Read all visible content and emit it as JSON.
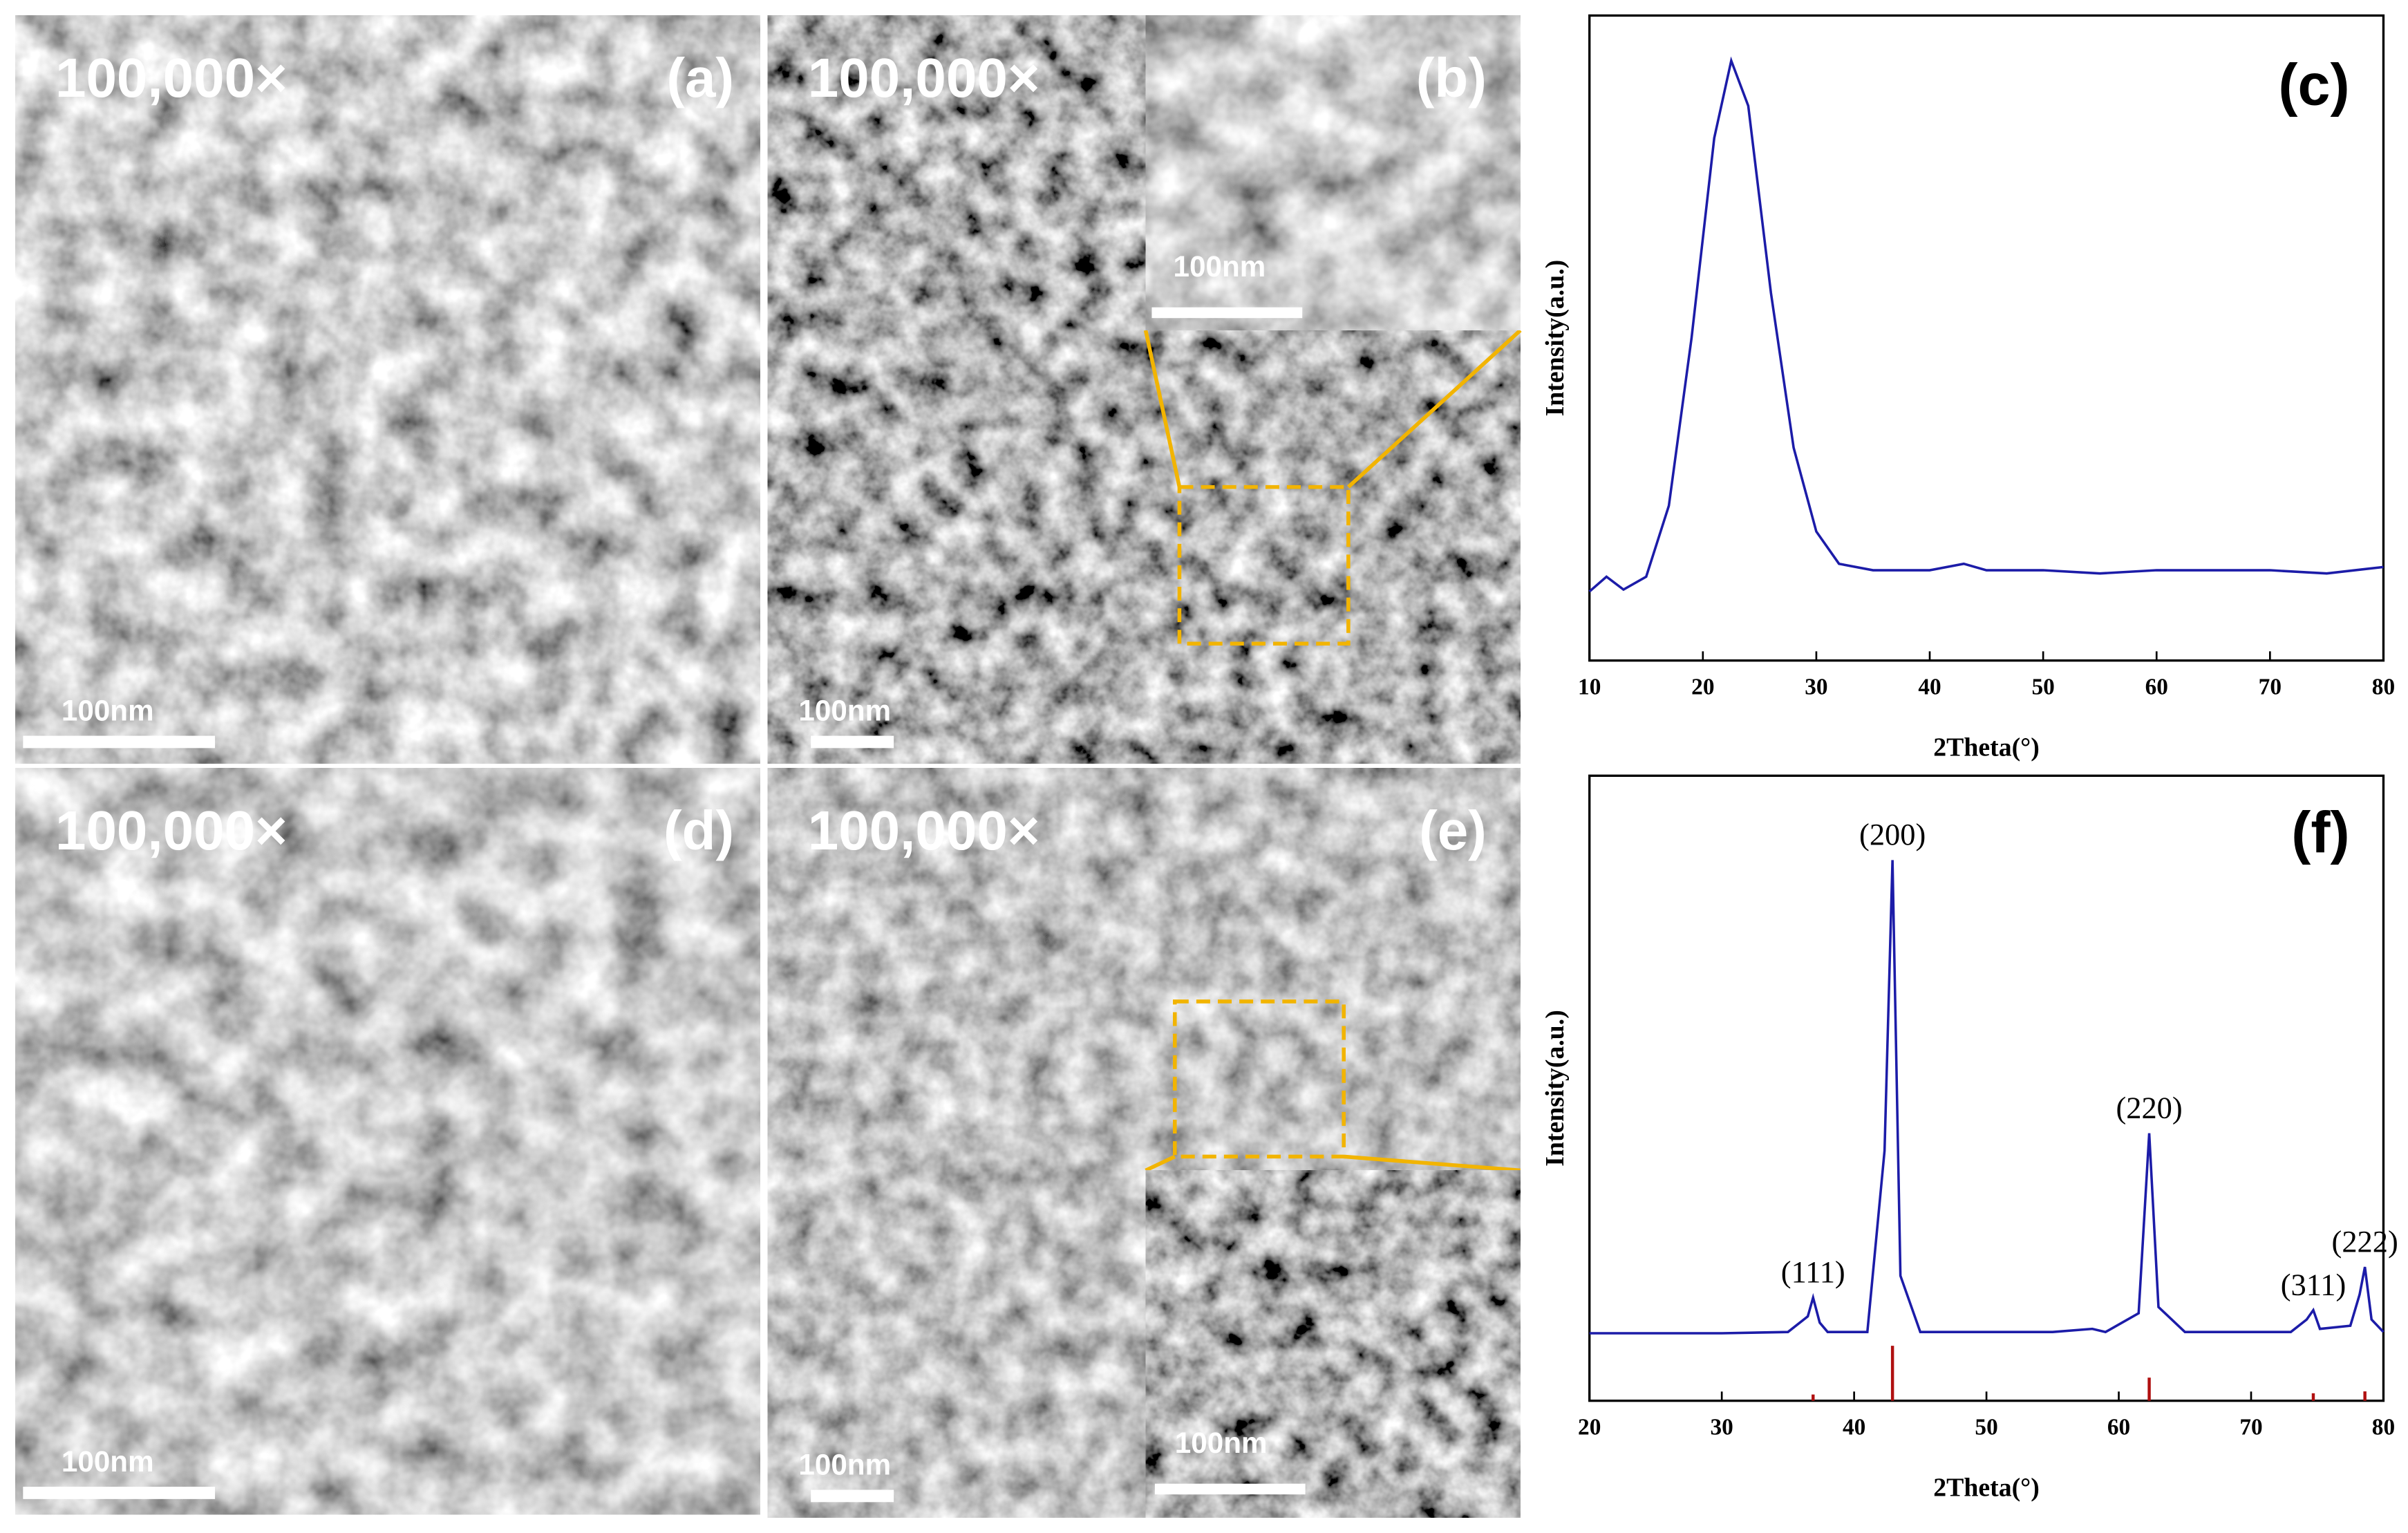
{
  "panels": [
    {
      "magnification": "100,000×",
      "label": "(a)",
      "scale_bar": "100nm"
    },
    {
      "magnification": "100,000×",
      "label": "(b)",
      "scale_bar": "100nm",
      "inset_scale_bar": "100nm"
    },
    {
      "magnification": "100,000×",
      "label": "(d)",
      "scale_bar": "100nm"
    },
    {
      "magnification": "100,000×",
      "label": "(e)",
      "scale_bar": "100nm",
      "inset_scale_bar": "100nm"
    }
  ],
  "chart_data": [
    {
      "type": "line",
      "label": "(c)",
      "x_label": "2Theta(°)",
      "y_label": "Intensity(a.u.)",
      "x": [
        10,
        11.5,
        13,
        15,
        17,
        19,
        21,
        22.5,
        24,
        26,
        28,
        30,
        32,
        35,
        40,
        43,
        45,
        50,
        55,
        60,
        65,
        70,
        75,
        80
      ],
      "series": [
        {
          "color": "#1c1ca8",
          "values": [
            10.7,
            13,
            11,
            13,
            24,
            50,
            81,
            93,
            86,
            57,
            33,
            20,
            15,
            14,
            14,
            15,
            14,
            14,
            13.5,
            14,
            14,
            14,
            13.5,
            14.5
          ]
        }
      ],
      "xlim": [
        10,
        80
      ],
      "xticks": [
        10,
        20,
        30,
        40,
        50,
        60,
        70,
        80
      ],
      "ylim": [
        0,
        100
      ]
    },
    {
      "type": "line",
      "label": "(f)",
      "x_label": "2Theta(°)",
      "y_label": "Intensity(a.u.)",
      "x": [
        20,
        30,
        35,
        36.5,
        36.9,
        37.4,
        38,
        41,
        42.3,
        42.9,
        43.5,
        45,
        55,
        58,
        59,
        61.5,
        62.3,
        63,
        65,
        73,
        74.2,
        74.7,
        75.2,
        77.5,
        78.2,
        78.6,
        79.1,
        80
      ],
      "series": [
        {
          "color": "#1c1ca8",
          "values": [
            10.8,
            10.8,
            11,
            13.5,
            16.5,
            12.5,
            11,
            11,
            40,
            86.5,
            20,
            11,
            11,
            11.5,
            11,
            14,
            42.8,
            15,
            11,
            11,
            13,
            14.5,
            11.5,
            12,
            17,
            21.4,
            13,
            11
          ]
        }
      ],
      "reference": {
        "color": "#b01010",
        "x": [
          36.9,
          42.9,
          62.3,
          74.7,
          78.6
        ],
        "values": [
          1,
          8.8,
          3.7,
          1.2,
          1.5
        ]
      },
      "annotations": [
        {
          "text": "(111)",
          "x": 36.9
        },
        {
          "text": "(200)",
          "x": 42.9
        },
        {
          "text": "(220)",
          "x": 62.3
        },
        {
          "text": "(311)",
          "x": 74.7
        },
        {
          "text": "(222)",
          "x": 78.6
        }
      ],
      "xlim": [
        20,
        80
      ],
      "xticks": [
        20,
        30,
        40,
        50,
        60,
        70,
        80
      ],
      "ylim": [
        0,
        100
      ]
    }
  ]
}
